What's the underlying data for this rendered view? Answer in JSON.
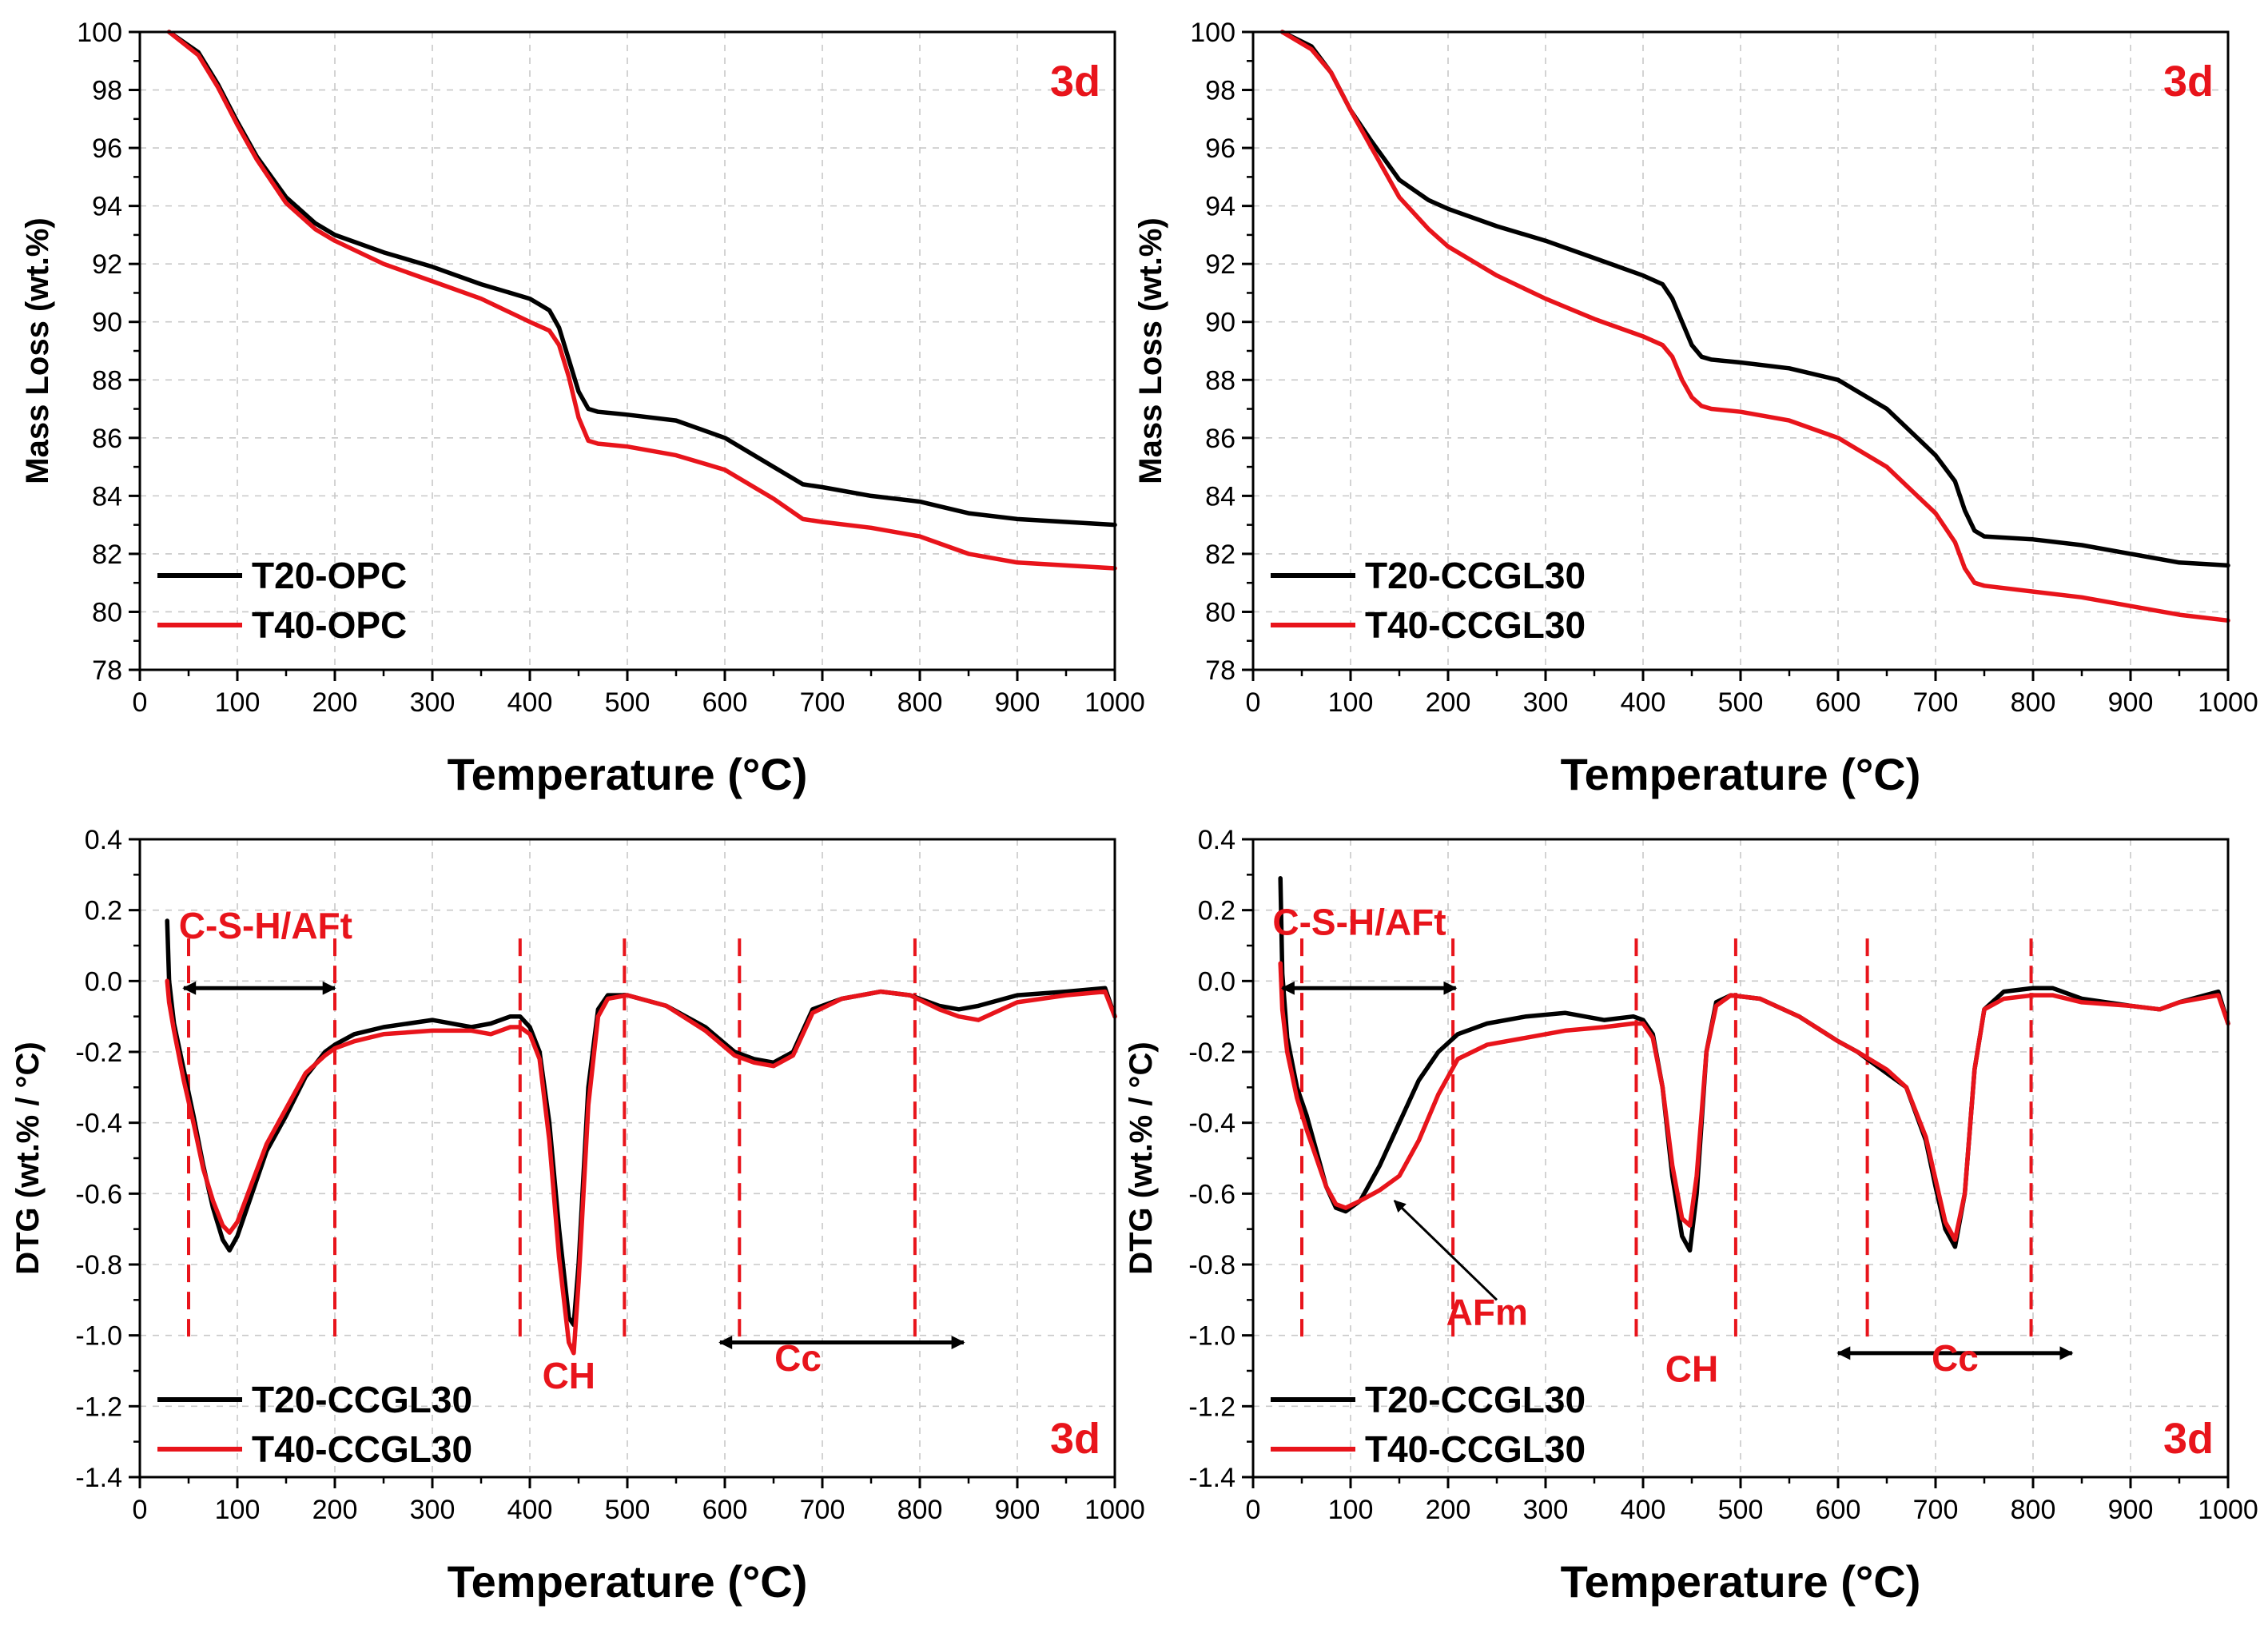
{
  "colors": {
    "black_series": "#000000",
    "red_series": "#e8141b",
    "annotation": "#e8141b",
    "grid": "#c8c8c8"
  },
  "chart_data": [
    {
      "id": "opc-tg",
      "type": "line",
      "xlabel": "Temperature (°C)",
      "ylabel": "Mass Loss (wt.%)",
      "xlim": [
        0,
        1000
      ],
      "ylim": [
        78,
        100
      ],
      "xticks": [
        0,
        100,
        200,
        300,
        400,
        500,
        600,
        700,
        800,
        900,
        1000
      ],
      "yticks": [
        78,
        80,
        82,
        84,
        86,
        88,
        90,
        92,
        94,
        96,
        98,
        100
      ],
      "grid": true,
      "legend_position": "bottom-left",
      "corner_label": "3d",
      "series": [
        {
          "name": "T20-OPC",
          "color": "#000000",
          "x": [
            30,
            60,
            80,
            100,
            120,
            150,
            180,
            200,
            250,
            300,
            350,
            400,
            420,
            430,
            440,
            450,
            460,
            470,
            500,
            550,
            600,
            650,
            680,
            700,
            750,
            800,
            850,
            900,
            950,
            1000
          ],
          "y": [
            100,
            99.3,
            98.2,
            96.9,
            95.7,
            94.3,
            93.4,
            93.0,
            92.4,
            91.9,
            91.3,
            90.8,
            90.4,
            89.8,
            88.7,
            87.6,
            87.0,
            86.9,
            86.8,
            86.6,
            86.0,
            85.0,
            84.4,
            84.3,
            84.0,
            83.8,
            83.4,
            83.2,
            83.1,
            83.0
          ]
        },
        {
          "name": "T40-OPC",
          "color": "#e8141b",
          "x": [
            30,
            60,
            80,
            100,
            120,
            150,
            180,
            200,
            250,
            300,
            350,
            400,
            420,
            430,
            440,
            450,
            460,
            470,
            500,
            550,
            600,
            650,
            680,
            700,
            750,
            800,
            850,
            900,
            950,
            1000
          ],
          "y": [
            100,
            99.2,
            98.1,
            96.8,
            95.6,
            94.1,
            93.2,
            92.8,
            92.0,
            91.4,
            90.8,
            90.0,
            89.7,
            89.2,
            88.1,
            86.7,
            85.9,
            85.8,
            85.7,
            85.4,
            84.9,
            83.9,
            83.2,
            83.1,
            82.9,
            82.6,
            82.0,
            81.7,
            81.6,
            81.5
          ]
        }
      ]
    },
    {
      "id": "ccgl30-tg",
      "type": "line",
      "xlabel": "Temperature (°C)",
      "ylabel": "Mass Loss (wt.%)",
      "xlim": [
        0,
        1000
      ],
      "ylim": [
        78,
        100
      ],
      "xticks": [
        0,
        100,
        200,
        300,
        400,
        500,
        600,
        700,
        800,
        900,
        1000
      ],
      "yticks": [
        78,
        80,
        82,
        84,
        86,
        88,
        90,
        92,
        94,
        96,
        98,
        100
      ],
      "grid": true,
      "legend_position": "bottom-left",
      "corner_label": "3d",
      "series": [
        {
          "name": "T20-CCGL30",
          "color": "#000000",
          "x": [
            30,
            60,
            80,
            100,
            120,
            150,
            180,
            200,
            250,
            300,
            350,
            400,
            420,
            430,
            440,
            450,
            460,
            470,
            500,
            550,
            600,
            650,
            700,
            720,
            730,
            740,
            750,
            800,
            850,
            900,
            950,
            1000
          ],
          "y": [
            100,
            99.5,
            98.6,
            97.3,
            96.3,
            94.9,
            94.2,
            93.9,
            93.3,
            92.8,
            92.2,
            91.6,
            91.3,
            90.8,
            90.0,
            89.2,
            88.8,
            88.7,
            88.6,
            88.4,
            88.0,
            87.0,
            85.4,
            84.5,
            83.5,
            82.8,
            82.6,
            82.5,
            82.3,
            82.0,
            81.7,
            81.6
          ]
        },
        {
          "name": "T40-CCGL30",
          "color": "#e8141b",
          "x": [
            30,
            60,
            80,
            100,
            120,
            150,
            180,
            200,
            250,
            300,
            350,
            400,
            420,
            430,
            440,
            450,
            460,
            470,
            500,
            550,
            600,
            650,
            700,
            720,
            730,
            740,
            750,
            800,
            850,
            900,
            950,
            1000
          ],
          "y": [
            100,
            99.4,
            98.6,
            97.3,
            96.1,
            94.3,
            93.2,
            92.6,
            91.6,
            90.8,
            90.1,
            89.5,
            89.2,
            88.8,
            88.0,
            87.4,
            87.1,
            87.0,
            86.9,
            86.6,
            86.0,
            85.0,
            83.4,
            82.4,
            81.5,
            81.0,
            80.9,
            80.7,
            80.5,
            80.2,
            79.9,
            79.7
          ]
        }
      ]
    },
    {
      "id": "opc-dtg",
      "type": "line",
      "xlabel": "Temperature (°C)",
      "ylabel": "DTG (wt.% / °C)",
      "xlim": [
        0,
        1000
      ],
      "ylim": [
        -1.4,
        0.4
      ],
      "xticks": [
        0,
        100,
        200,
        300,
        400,
        500,
        600,
        700,
        800,
        900,
        1000
      ],
      "yticks": [
        -1.4,
        -1.2,
        -1.0,
        -0.8,
        -0.6,
        -0.4,
        -0.2,
        0.0,
        0.2,
        0.4
      ],
      "grid": true,
      "legend_position": "bottom-left",
      "corner_label": "3d",
      "series": [
        {
          "name": "T20-CCGL30",
          "color": "#000000",
          "x": [
            28,
            30,
            35,
            45,
            55,
            65,
            75,
            85,
            92,
            100,
            115,
            130,
            150,
            170,
            190,
            200,
            220,
            250,
            300,
            340,
            360,
            380,
            390,
            400,
            410,
            420,
            430,
            440,
            445,
            450,
            460,
            470,
            480,
            500,
            540,
            580,
            610,
            630,
            650,
            670,
            690,
            720,
            760,
            790,
            820,
            840,
            860,
            900,
            950,
            990,
            1000
          ],
          "y": [
            0.17,
            0.0,
            -0.12,
            -0.25,
            -0.38,
            -0.52,
            -0.64,
            -0.73,
            -0.76,
            -0.72,
            -0.6,
            -0.48,
            -0.38,
            -0.27,
            -0.2,
            -0.18,
            -0.15,
            -0.13,
            -0.11,
            -0.13,
            -0.12,
            -0.1,
            -0.1,
            -0.13,
            -0.2,
            -0.4,
            -0.7,
            -0.95,
            -0.97,
            -0.8,
            -0.3,
            -0.08,
            -0.04,
            -0.04,
            -0.07,
            -0.13,
            -0.2,
            -0.22,
            -0.23,
            -0.2,
            -0.08,
            -0.05,
            -0.03,
            -0.04,
            -0.07,
            -0.08,
            -0.07,
            -0.04,
            -0.03,
            -0.02,
            -0.1
          ]
        },
        {
          "name": "T40-CCGL30",
          "color": "#e8141b",
          "x": [
            28,
            30,
            35,
            45,
            55,
            65,
            75,
            85,
            92,
            100,
            115,
            130,
            150,
            170,
            190,
            200,
            220,
            250,
            300,
            340,
            360,
            380,
            390,
            400,
            410,
            420,
            430,
            440,
            445,
            450,
            460,
            470,
            480,
            500,
            540,
            580,
            610,
            630,
            650,
            670,
            690,
            720,
            760,
            790,
            820,
            840,
            860,
            900,
            950,
            990,
            1000
          ],
          "y": [
            0.0,
            -0.06,
            -0.14,
            -0.28,
            -0.4,
            -0.53,
            -0.62,
            -0.69,
            -0.71,
            -0.68,
            -0.57,
            -0.46,
            -0.36,
            -0.26,
            -0.21,
            -0.19,
            -0.17,
            -0.15,
            -0.14,
            -0.14,
            -0.15,
            -0.13,
            -0.13,
            -0.15,
            -0.22,
            -0.45,
            -0.78,
            -1.02,
            -1.05,
            -0.85,
            -0.35,
            -0.1,
            -0.05,
            -0.04,
            -0.07,
            -0.14,
            -0.21,
            -0.23,
            -0.24,
            -0.21,
            -0.09,
            -0.05,
            -0.03,
            -0.04,
            -0.08,
            -0.1,
            -0.11,
            -0.06,
            -0.04,
            -0.03,
            -0.1
          ]
        }
      ],
      "annotations": [
        {
          "text": "C-S-H/AFt",
          "x": 40,
          "y": 0.12
        },
        {
          "text": "CH",
          "x": 440,
          "y": -1.15
        },
        {
          "text": "Cc",
          "x": 675,
          "y": -1.1
        }
      ],
      "dashed_lines": [
        50,
        200,
        390,
        497,
        615,
        795
      ],
      "double_arrows": [
        {
          "x1": 45,
          "x2": 200,
          "y": -0.02
        },
        {
          "x1": 595,
          "x2": 845,
          "y": -1.02
        }
      ]
    },
    {
      "id": "ccgl30-dtg",
      "type": "line",
      "xlabel": "Temperature (°C)",
      "ylabel": "DTG (wt.% / °C)",
      "xlim": [
        0,
        1000
      ],
      "ylim": [
        -1.4,
        0.4
      ],
      "xticks": [
        0,
        100,
        200,
        300,
        400,
        500,
        600,
        700,
        800,
        900,
        1000
      ],
      "yticks": [
        -1.4,
        -1.2,
        -1.0,
        -0.8,
        -0.6,
        -0.4,
        -0.2,
        0.0,
        0.2,
        0.4
      ],
      "grid": true,
      "legend_position": "bottom-left",
      "corner_label": "3d",
      "series": [
        {
          "name": "T20-CCGL30",
          "color": "#000000",
          "x": [
            28,
            30,
            35,
            45,
            55,
            65,
            75,
            85,
            95,
            110,
            130,
            150,
            170,
            190,
            210,
            240,
            280,
            320,
            360,
            390,
            400,
            410,
            420,
            430,
            440,
            448,
            455,
            465,
            475,
            490,
            520,
            560,
            600,
            620,
            650,
            670,
            690,
            700,
            710,
            720,
            730,
            740,
            750,
            770,
            800,
            820,
            850,
            900,
            930,
            950,
            990,
            1000
          ],
          "y": [
            0.29,
            0.02,
            -0.16,
            -0.3,
            -0.38,
            -0.48,
            -0.58,
            -0.64,
            -0.65,
            -0.62,
            -0.52,
            -0.4,
            -0.28,
            -0.2,
            -0.15,
            -0.12,
            -0.1,
            -0.09,
            -0.11,
            -0.1,
            -0.11,
            -0.15,
            -0.3,
            -0.55,
            -0.72,
            -0.76,
            -0.6,
            -0.2,
            -0.06,
            -0.04,
            -0.05,
            -0.1,
            -0.17,
            -0.2,
            -0.26,
            -0.3,
            -0.45,
            -0.58,
            -0.7,
            -0.75,
            -0.6,
            -0.25,
            -0.08,
            -0.03,
            -0.02,
            -0.02,
            -0.05,
            -0.07,
            -0.08,
            -0.06,
            -0.03,
            -0.12
          ]
        },
        {
          "name": "T40-CCGL30",
          "color": "#e8141b",
          "x": [
            28,
            30,
            35,
            45,
            55,
            65,
            75,
            85,
            95,
            110,
            130,
            150,
            170,
            190,
            210,
            240,
            280,
            320,
            360,
            390,
            400,
            410,
            420,
            430,
            440,
            448,
            455,
            465,
            475,
            490,
            520,
            560,
            600,
            620,
            650,
            670,
            690,
            700,
            710,
            720,
            730,
            740,
            750,
            770,
            800,
            820,
            850,
            900,
            930,
            950,
            990,
            1000
          ],
          "y": [
            0.05,
            -0.08,
            -0.2,
            -0.33,
            -0.42,
            -0.5,
            -0.58,
            -0.63,
            -0.64,
            -0.62,
            -0.59,
            -0.55,
            -0.45,
            -0.32,
            -0.22,
            -0.18,
            -0.16,
            -0.14,
            -0.13,
            -0.12,
            -0.12,
            -0.16,
            -0.3,
            -0.52,
            -0.67,
            -0.69,
            -0.55,
            -0.2,
            -0.07,
            -0.04,
            -0.05,
            -0.1,
            -0.17,
            -0.2,
            -0.25,
            -0.3,
            -0.44,
            -0.56,
            -0.68,
            -0.73,
            -0.6,
            -0.25,
            -0.08,
            -0.05,
            -0.04,
            -0.04,
            -0.06,
            -0.07,
            -0.08,
            -0.06,
            -0.04,
            -0.12
          ]
        }
      ],
      "annotations": [
        {
          "text": "C-S-H/AFt",
          "x": 20,
          "y": 0.13
        },
        {
          "text": "AFm",
          "x": 240,
          "y": -0.97
        },
        {
          "text": "CH",
          "x": 450,
          "y": -1.13
        },
        {
          "text": "Cc",
          "x": 720,
          "y": -1.1
        }
      ],
      "dashed_lines": [
        50,
        205,
        393,
        495,
        630,
        798
      ],
      "double_arrows": [
        {
          "x1": 30,
          "x2": 208,
          "y": -0.02
        },
        {
          "x1": 600,
          "x2": 840,
          "y": -1.05
        }
      ],
      "pointer_arrow": {
        "from_x": 250,
        "from_y": -0.9,
        "to_x": 145,
        "to_y": -0.62
      }
    }
  ]
}
